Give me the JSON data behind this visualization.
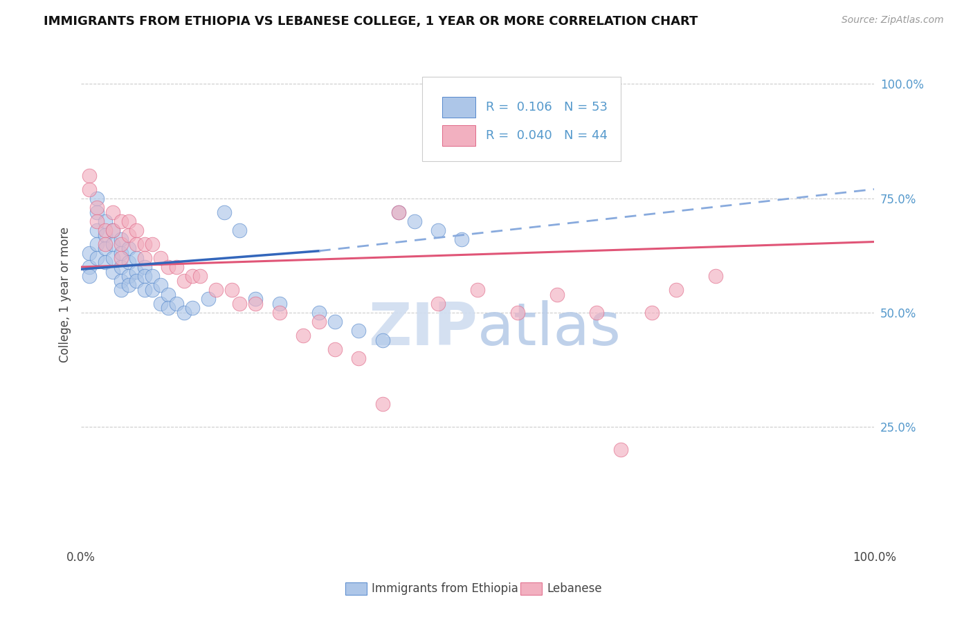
{
  "title": "IMMIGRANTS FROM ETHIOPIA VS LEBANESE COLLEGE, 1 YEAR OR MORE CORRELATION CHART",
  "source_text": "Source: ZipAtlas.com",
  "ylabel": "College, 1 year or more",
  "xlim": [
    0.0,
    1.0
  ],
  "ylim": [
    0.0,
    1.08
  ],
  "ytick_labels": [
    "25.0%",
    "50.0%",
    "75.0%",
    "100.0%"
  ],
  "ytick_values": [
    0.25,
    0.5,
    0.75,
    1.0
  ],
  "blue_R": 0.106,
  "blue_N": 53,
  "pink_R": 0.04,
  "pink_N": 44,
  "blue_color": "#adc6e8",
  "pink_color": "#f2b0c0",
  "blue_edge_color": "#5588cc",
  "pink_edge_color": "#e06888",
  "blue_line_color": "#3366bb",
  "pink_line_color": "#e05577",
  "blue_dashed_color": "#88aadd",
  "watermark_color": "#ccd8ee",
  "legend_label_blue": "Immigrants from Ethiopia",
  "legend_label_pink": "Lebanese",
  "background_color": "#ffffff",
  "grid_color": "#cccccc",
  "blue_x": [
    0.01,
    0.01,
    0.01,
    0.02,
    0.02,
    0.02,
    0.02,
    0.02,
    0.03,
    0.03,
    0.03,
    0.03,
    0.04,
    0.04,
    0.04,
    0.04,
    0.05,
    0.05,
    0.05,
    0.05,
    0.05,
    0.06,
    0.06,
    0.06,
    0.06,
    0.07,
    0.07,
    0.07,
    0.08,
    0.08,
    0.08,
    0.09,
    0.09,
    0.1,
    0.1,
    0.11,
    0.11,
    0.12,
    0.13,
    0.14,
    0.16,
    0.18,
    0.2,
    0.22,
    0.25,
    0.3,
    0.32,
    0.35,
    0.38,
    0.4,
    0.42,
    0.45,
    0.48
  ],
  "blue_y": [
    0.63,
    0.6,
    0.58,
    0.75,
    0.72,
    0.68,
    0.65,
    0.62,
    0.7,
    0.67,
    0.64,
    0.61,
    0.68,
    0.65,
    0.62,
    0.59,
    0.66,
    0.63,
    0.6,
    0.57,
    0.55,
    0.64,
    0.61,
    0.58,
    0.56,
    0.62,
    0.59,
    0.57,
    0.6,
    0.58,
    0.55,
    0.58,
    0.55,
    0.56,
    0.52,
    0.54,
    0.51,
    0.52,
    0.5,
    0.51,
    0.53,
    0.72,
    0.68,
    0.53,
    0.52,
    0.5,
    0.48,
    0.46,
    0.44,
    0.72,
    0.7,
    0.68,
    0.66
  ],
  "pink_x": [
    0.01,
    0.01,
    0.02,
    0.02,
    0.03,
    0.03,
    0.04,
    0.04,
    0.05,
    0.05,
    0.05,
    0.06,
    0.06,
    0.07,
    0.07,
    0.08,
    0.08,
    0.09,
    0.1,
    0.11,
    0.12,
    0.13,
    0.14,
    0.15,
    0.17,
    0.19,
    0.2,
    0.22,
    0.25,
    0.28,
    0.3,
    0.32,
    0.35,
    0.38,
    0.4,
    0.45,
    0.5,
    0.55,
    0.6,
    0.65,
    0.68,
    0.72,
    0.75,
    0.8
  ],
  "pink_y": [
    0.8,
    0.77,
    0.73,
    0.7,
    0.68,
    0.65,
    0.72,
    0.68,
    0.7,
    0.65,
    0.62,
    0.7,
    0.67,
    0.68,
    0.65,
    0.65,
    0.62,
    0.65,
    0.62,
    0.6,
    0.6,
    0.57,
    0.58,
    0.58,
    0.55,
    0.55,
    0.52,
    0.52,
    0.5,
    0.45,
    0.48,
    0.42,
    0.4,
    0.3,
    0.72,
    0.52,
    0.55,
    0.5,
    0.54,
    0.5,
    0.2,
    0.5,
    0.55,
    0.58
  ],
  "blue_trend_solid_end": 0.3,
  "blue_trend_start_y": 0.595,
  "blue_trend_end_y_solid": 0.635,
  "blue_trend_end_y_dashed": 0.77,
  "pink_trend_start_y": 0.6,
  "pink_trend_end_y": 0.655
}
